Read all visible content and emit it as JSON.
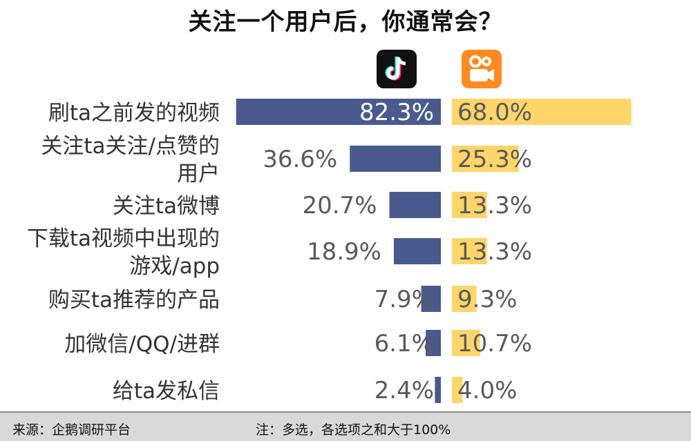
{
  "title": "关注一个用户后，你通常会？",
  "footer": {
    "source": "来源：企鹅调研平台",
    "note": "注：多选，各选项之和大于100%"
  },
  "colors": {
    "douyin": "#4a5a8e",
    "kuaishou": "#fdd56a",
    "kuaishou_logo": "#ff8a1f",
    "douyin_logo": "#111111",
    "label_text": "#333333",
    "value_on_bar": "#ffffff",
    "value_off_bar": "#595959"
  },
  "chart_data": {
    "type": "bar",
    "orientation": "horizontal-butterfly",
    "categories": [
      "刷ta之前发的视频",
      "关注ta关注/点赞的用户",
      "关注ta微博",
      "下载ta视频中出现的游戏/app",
      "购买ta推荐的产品",
      "加微信/QQ/进群",
      "给ta发私信"
    ],
    "category_lines": [
      [
        "刷ta之前发的视频"
      ],
      [
        "关注ta关注/点赞的",
        "用户"
      ],
      [
        "关注ta微博"
      ],
      [
        "下载ta视频中出现的",
        "游戏/app"
      ],
      [
        "购买ta推荐的产品"
      ],
      [
        "加微信/QQ/进群"
      ],
      [
        "给ta发私信"
      ]
    ],
    "series": [
      {
        "name": "",
        "icon": "douyin-logo-icon",
        "values": [
          82.3,
          36.6,
          20.7,
          18.9,
          7.9,
          6.1,
          2.4
        ],
        "labels": [
          "82.3%",
          "36.6%",
          "20.7%",
          "18.9%",
          "7.9%",
          "6.1%",
          "2.4%"
        ]
      },
      {
        "name": "",
        "icon": "kuaishou-logo-icon",
        "values": [
          68.0,
          25.3,
          13.3,
          13.3,
          9.3,
          10.7,
          4.0
        ],
        "labels": [
          "68.0%",
          "25.3%",
          "13.3%",
          "13.3%",
          "9.3%",
          "10.7%",
          "4.0%"
        ]
      }
    ],
    "xlim": [
      0,
      100
    ],
    "grid": false,
    "legend": "top (logos above bars)"
  }
}
